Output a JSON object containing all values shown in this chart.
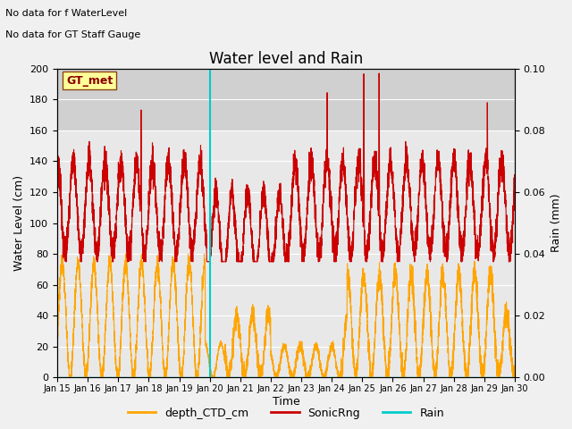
{
  "title": "Water level and Rain",
  "xlabel": "Time",
  "ylabel_left": "Water Level (cm)",
  "ylabel_right": "Rain (mm)",
  "annotation_line1": "No data for f WaterLevel",
  "annotation_line2": "No data for GT Staff Gauge",
  "gt_met_label": "GT_met",
  "ylim_left": [
    0,
    200
  ],
  "ylim_right": [
    0.0,
    0.1
  ],
  "yticks_left": [
    0,
    20,
    40,
    60,
    80,
    100,
    120,
    140,
    160,
    180,
    200
  ],
  "yticks_right": [
    0.0,
    0.02,
    0.04,
    0.06,
    0.08,
    0.1
  ],
  "xlim": [
    15,
    30
  ],
  "xtick_labels": [
    "Jan 15",
    "Jan 16",
    "Jan 17",
    "Jan 18",
    "Jan 19",
    "Jan 20",
    "Jan 21",
    "Jan 22",
    "Jan 23",
    "Jan 24",
    "Jan 25",
    "Jan 26",
    "Jan 27",
    "Jan 28",
    "Jan 29",
    "Jan 30"
  ],
  "xtick_positions": [
    15,
    16,
    17,
    18,
    19,
    20,
    21,
    22,
    23,
    24,
    25,
    26,
    27,
    28,
    29,
    30
  ],
  "cyan_line_x": 20,
  "fig_bg_color": "#f0f0f0",
  "plot_bg_color": "#e8e8e8",
  "plot_bg_top_color": "#d8d8d8",
  "orange_color": "#FFA500",
  "red_color": "#CC0000",
  "cyan_color": "#00CCCC",
  "title_fontsize": 12,
  "label_fontsize": 9,
  "tick_fontsize": 8,
  "annot_fontsize": 8
}
